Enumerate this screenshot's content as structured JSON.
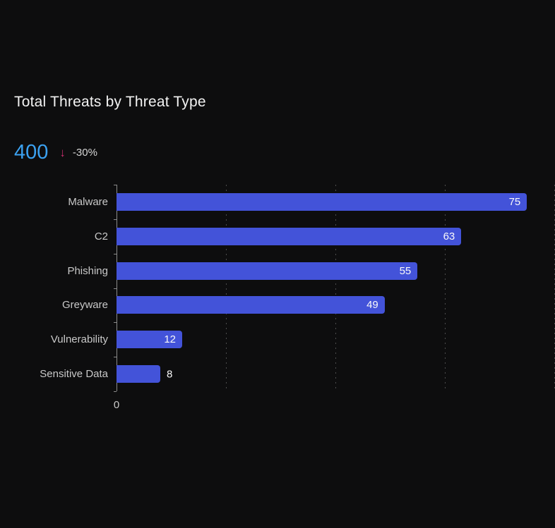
{
  "header": {
    "title": "Total Threats by Threat Type",
    "kpi_value": "400",
    "kpi_trend_arrow_glyph": "↓",
    "kpi_trend_pct": "-30%"
  },
  "colors": {
    "background": "#0d0d0e",
    "bar": "#4353d9",
    "kpi_value_blue": "#3ba1f0",
    "trend_pink": "#c62e6d",
    "title_text": "#f2f2f2",
    "label_text": "#c9c9c9",
    "grid": "#4d4d4d",
    "axis": "#8a8a8a"
  },
  "chart_data": {
    "type": "bar",
    "orientation": "horizontal",
    "title": "Total Threats by Threat Type",
    "categories": [
      "Malware",
      "C2",
      "Phishing",
      "Greyware",
      "Vulnerability",
      "Sensitive Data"
    ],
    "values": [
      75,
      63,
      55,
      49,
      12,
      8
    ],
    "value_labels": [
      "75",
      "63",
      "55",
      "49",
      "12",
      "8"
    ],
    "xlim": [
      0,
      80
    ],
    "gridlines_x": [
      20,
      40,
      60,
      80
    ],
    "x_tick_labels_visible": [
      "0"
    ],
    "grid": "dashed-vertical",
    "legend": "none"
  }
}
